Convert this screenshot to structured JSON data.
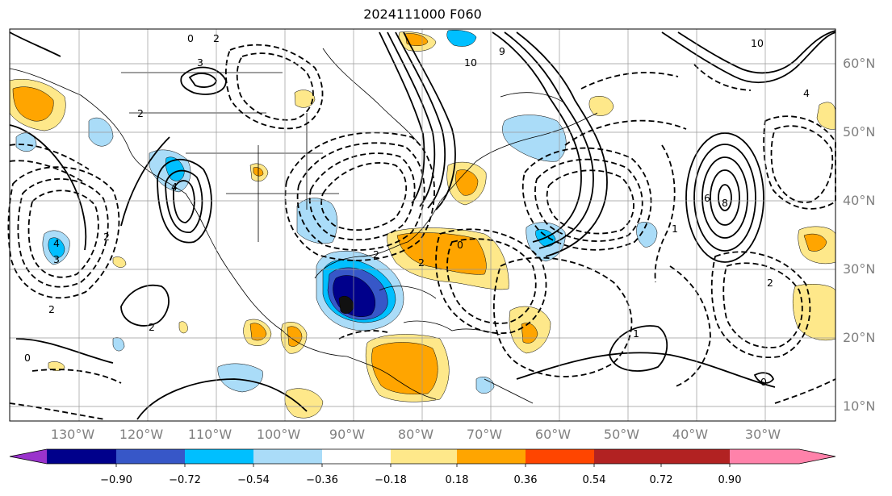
{
  "title": "2024111000 F060",
  "map": {
    "lon_labels": [
      "130°W",
      "120°W",
      "110°W",
      "100°W",
      "90°W",
      "80°W",
      "70°W",
      "60°W",
      "50°W",
      "40°W",
      "30°W"
    ],
    "lat_labels": [
      "60°N",
      "50°N",
      "40°N",
      "30°N",
      "20°N",
      "10°N"
    ],
    "contour_labels": [
      "0",
      "2",
      "3",
      "10",
      "9",
      "10",
      "2",
      "2",
      "4",
      "6",
      "8",
      "4",
      "3",
      "2",
      "2",
      "2",
      "1",
      "0",
      "1",
      "0",
      "0",
      "2",
      "4",
      "2"
    ]
  },
  "colorbar": {
    "tick_labels": [
      "−0.90",
      "−0.72",
      "−0.54",
      "−0.36",
      "−0.18",
      "0.18",
      "0.36",
      "0.54",
      "0.72",
      "0.90"
    ],
    "colors": [
      "#9a33cc",
      "#00008b",
      "#3757c8",
      "#00bfff",
      "#aadcf8",
      "#ffffff",
      "#fee88a",
      "#ffa500",
      "#ff4500",
      "#b22222",
      "#ff82aa"
    ]
  }
}
